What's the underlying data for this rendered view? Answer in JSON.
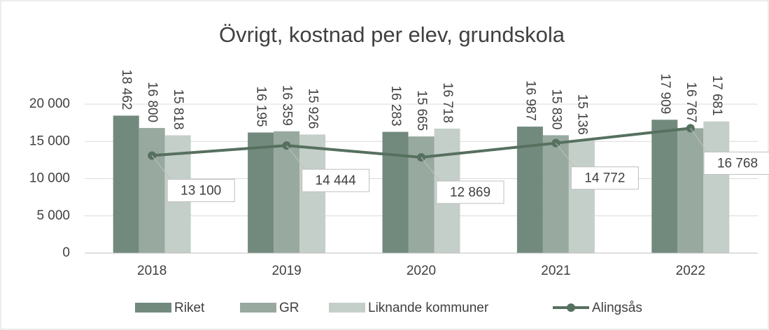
{
  "chart_data": {
    "type": "bar",
    "title": "Övrigt, kostnad per elev, grundskola",
    "categories": [
      "2018",
      "2019",
      "2020",
      "2021",
      "2022"
    ],
    "series": [
      {
        "name": "Riket",
        "color": "#728a7e",
        "values": [
          18462,
          16195,
          16283,
          16987,
          17909
        ],
        "value_labels": [
          "18 462",
          "16 195",
          "16 283",
          "16 987",
          "17 909"
        ]
      },
      {
        "name": "GR",
        "color": "#98a99f",
        "values": [
          16800,
          16359,
          15665,
          15830,
          16767
        ],
        "value_labels": [
          "16 800",
          "16 359",
          "15 665",
          "15 830",
          "16 767"
        ]
      },
      {
        "name": "Liknande kommuner",
        "color": "#c5cfc9",
        "values": [
          15818,
          15926,
          16718,
          15136,
          17681
        ],
        "value_labels": [
          "15 818",
          "15 926",
          "16 718",
          "15 136",
          "17 681"
        ]
      },
      {
        "name": "Alingsås",
        "color": "#56705f",
        "type": "line",
        "values": [
          13100,
          14444,
          12869,
          14772,
          16768
        ],
        "value_labels": [
          "13 100",
          "14 444",
          "12 869",
          "14 772",
          "16 768"
        ]
      }
    ],
    "ylim": [
      0,
      20000
    ],
    "yticks": [
      0,
      {
        "value": 5000,
        "label": "5 000"
      },
      {
        "value": 10000,
        "label": "10 000"
      },
      {
        "value": 15000,
        "label": "15 000"
      },
      {
        "value": 20000,
        "label": "20 000"
      }
    ],
    "grid": true
  }
}
